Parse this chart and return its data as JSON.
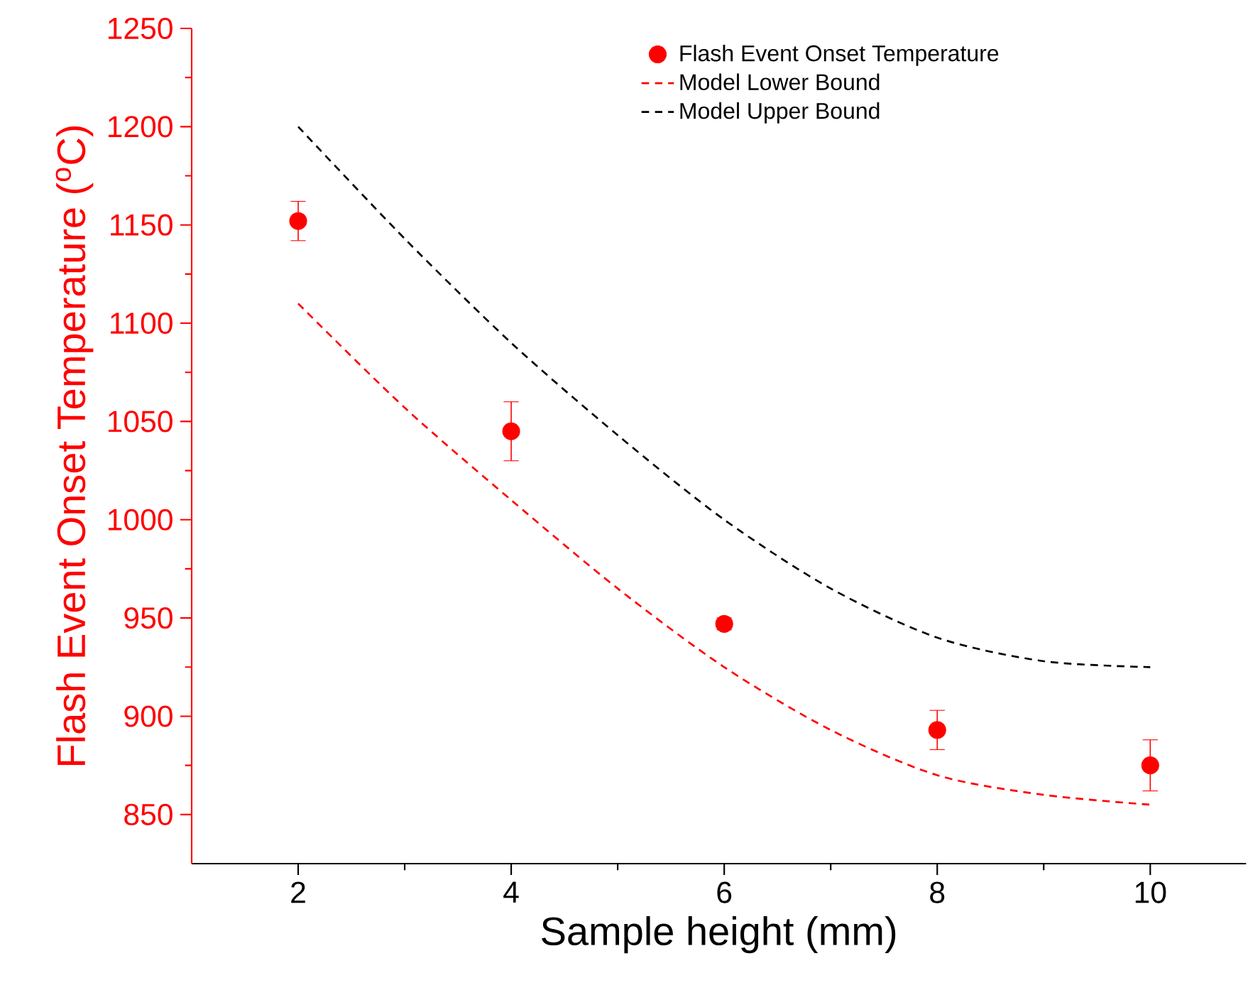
{
  "chart_data": {
    "type": "scatter",
    "xlabel": "Sample height (mm)",
    "ylabel": "Flash Event Onset Temperature ($^{o}$C)",
    "xlim": [
      1,
      10.9
    ],
    "xticks": [
      2,
      4,
      6,
      8,
      10
    ],
    "ylim": [
      825,
      1250
    ],
    "yticks": [
      850,
      900,
      950,
      1000,
      1050,
      1100,
      1150,
      1200,
      1250
    ],
    "legend": "top right",
    "grid": false,
    "series": [
      {
        "name": "Flash Event Onset Temperature",
        "color": "#ff0000",
        "marker": "circle",
        "x": [
          2,
          4,
          6,
          8,
          10
        ],
        "values": [
          1152,
          1045,
          947,
          893,
          875
        ],
        "errors": [
          10,
          15,
          3,
          10,
          13
        ]
      },
      {
        "name": "Model Lower Bound",
        "type": "line",
        "color": "#ff0000",
        "line_style": "dashed",
        "marker": "none",
        "x": [
          2,
          3,
          4,
          5,
          6,
          7,
          8,
          9,
          10
        ],
        "values": [
          1110,
          1057,
          1010,
          965,
          925,
          893,
          870,
          860,
          855
        ]
      },
      {
        "name": "Model Upper Bound",
        "type": "line",
        "color": "#000000",
        "line_style": "dashed",
        "marker": "none",
        "x": [
          2,
          3,
          4,
          5,
          6,
          7,
          8,
          9,
          10
        ],
        "values": [
          1200,
          1143,
          1090,
          1043,
          1000,
          965,
          940,
          928,
          925
        ]
      }
    ]
  }
}
